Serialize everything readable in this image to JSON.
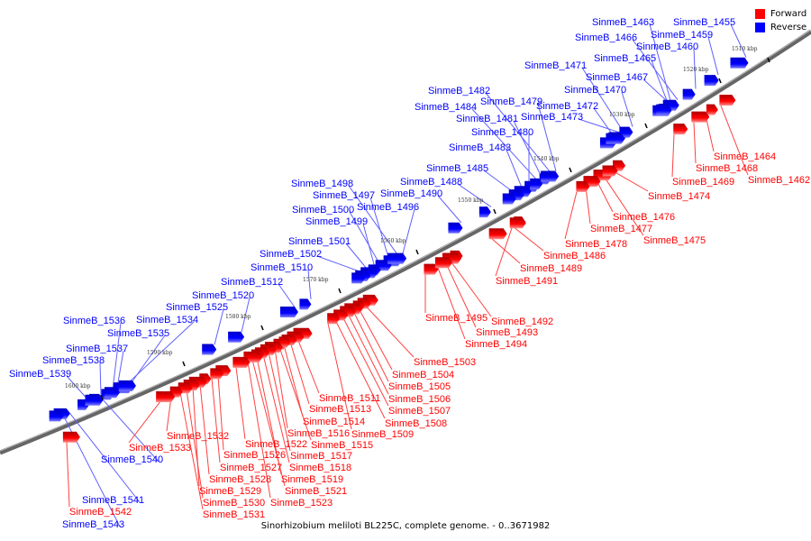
{
  "legend": {
    "forward_label": "Forward",
    "reverse_label": "Reverse",
    "forward_color": "#ff0000",
    "reverse_color": "#0000ff"
  },
  "caption": "Sinorhizobium meliloti BL225C, complete genome. - 0..3671982",
  "ticks": [
    "1510 kbp",
    "1520 kbp",
    "1530 kbp",
    "1540 kbp",
    "1550 kbp",
    "1560 kbp",
    "1570 kbp",
    "1580 kbp",
    "1590 kbp",
    "1600 kbp"
  ],
  "reverse_genes": [
    "SinmeB_1463",
    "SinmeB_1455",
    "SinmeB_1466",
    "SinmeB_1459",
    "SinmeB_1460",
    "SinmeB_1465",
    "SinmeB_1471",
    "SinmeB_1467",
    "SinmeB_1470",
    "SinmeB_1482",
    "SinmeB_1479",
    "SinmeB_1472",
    "SinmeB_1484",
    "SinmeB_1481",
    "SinmeB_1473",
    "SinmeB_1480",
    "SinmeB_1483",
    "SinmeB_1485",
    "SinmeB_1488",
    "SinmeB_1498",
    "SinmeB_1497",
    "SinmeB_1490",
    "SinmeB_1500",
    "SinmeB_1496",
    "SinmeB_1499",
    "SinmeB_1501",
    "SinmeB_1502",
    "SinmeB_1510",
    "SinmeB_1512",
    "SinmeB_1520",
    "SinmeB_1525",
    "SinmeB_1536",
    "SinmeB_1534",
    "SinmeB_1535",
    "SinmeB_1537",
    "SinmeB_1538",
    "SinmeB_1539",
    "SinmeB_1540",
    "SinmeB_1541",
    "SinmeB_1543"
  ],
  "forward_genes": [
    "SinmeB_1464",
    "SinmeB_1468",
    "SinmeB_1462",
    "SinmeB_1469",
    "SinmeB_1474",
    "SinmeB_1476",
    "SinmeB_1477",
    "SinmeB_1475",
    "SinmeB_1478",
    "SinmeB_1486",
    "SinmeB_1489",
    "SinmeB_1491",
    "SinmeB_1495",
    "SinmeB_1492",
    "SinmeB_1493",
    "SinmeB_1494",
    "SinmeB_1503",
    "SinmeB_1504",
    "SinmeB_1505",
    "SinmeB_1506",
    "SinmeB_1507",
    "SinmeB_1508",
    "SinmeB_1509",
    "SinmeB_1511",
    "SinmeB_1513",
    "SinmeB_1514",
    "SinmeB_1516",
    "SinmeB_1515",
    "SinmeB_1517",
    "SinmeB_1518",
    "SinmeB_1519",
    "SinmeB_1521",
    "SinmeB_1523",
    "SinmeB_1522",
    "SinmeB_1526",
    "SinmeB_1527",
    "SinmeB_1528",
    "SinmeB_1529",
    "SinmeB_1530",
    "SinmeB_1531",
    "SinmeB_1532",
    "SinmeB_1533",
    "SinmeB_1542"
  ]
}
